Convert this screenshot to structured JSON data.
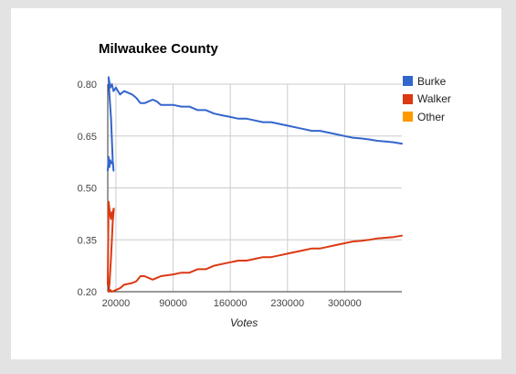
{
  "chart_data": {
    "type": "line",
    "title": "Milwaukee County",
    "xlabel": "Votes",
    "ylabel": "",
    "xlim": [
      10000,
      370000
    ],
    "ylim": [
      0.2,
      0.8
    ],
    "x_ticks": [
      20000,
      90000,
      160000,
      230000,
      300000
    ],
    "y_ticks": [
      0.2,
      0.35,
      0.5,
      0.65,
      0.8
    ],
    "x_tick_labels": [
      "20000",
      "90000",
      "160000",
      "230000",
      "300000"
    ],
    "y_tick_labels": [
      "0.20",
      "0.35",
      "0.50",
      "0.65",
      "0.80"
    ],
    "grid": true,
    "legend_position": "right",
    "series": [
      {
        "name": "Burke",
        "color": "#3366cc",
        "points": [
          [
            10000,
            0.55
          ],
          [
            11000,
            0.59
          ],
          [
            12000,
            0.56
          ],
          [
            13000,
            0.58
          ],
          [
            15000,
            0.57
          ],
          [
            16500,
            0.57
          ],
          [
            17000,
            0.55
          ],
          [
            16000,
            0.58
          ],
          [
            14000,
            0.7
          ],
          [
            12000,
            0.77
          ],
          [
            11000,
            0.82
          ],
          [
            13000,
            0.79
          ],
          [
            15000,
            0.8
          ],
          [
            17000,
            0.78
          ],
          [
            20000,
            0.79
          ],
          [
            25000,
            0.77
          ],
          [
            30000,
            0.78
          ],
          [
            40000,
            0.77
          ],
          [
            45000,
            0.76
          ],
          [
            50000,
            0.745
          ],
          [
            55000,
            0.745
          ],
          [
            60000,
            0.75
          ],
          [
            65000,
            0.755
          ],
          [
            70000,
            0.75
          ],
          [
            75000,
            0.74
          ],
          [
            90000,
            0.74
          ],
          [
            100000,
            0.735
          ],
          [
            110000,
            0.735
          ],
          [
            120000,
            0.725
          ],
          [
            130000,
            0.725
          ],
          [
            140000,
            0.715
          ],
          [
            150000,
            0.71
          ],
          [
            160000,
            0.705
          ],
          [
            170000,
            0.7
          ],
          [
            180000,
            0.7
          ],
          [
            190000,
            0.695
          ],
          [
            200000,
            0.69
          ],
          [
            210000,
            0.69
          ],
          [
            220000,
            0.685
          ],
          [
            230000,
            0.68
          ],
          [
            240000,
            0.675
          ],
          [
            250000,
            0.67
          ],
          [
            260000,
            0.665
          ],
          [
            270000,
            0.665
          ],
          [
            280000,
            0.66
          ],
          [
            290000,
            0.655
          ],
          [
            300000,
            0.65
          ],
          [
            310000,
            0.645
          ],
          [
            320000,
            0.643
          ],
          [
            330000,
            0.64
          ],
          [
            340000,
            0.636
          ],
          [
            350000,
            0.634
          ],
          [
            360000,
            0.632
          ],
          [
            370000,
            0.628
          ]
        ]
      },
      {
        "name": "Walker",
        "color": "#dc3912",
        "points": [
          [
            10000,
            0.22
          ],
          [
            11000,
            0.46
          ],
          [
            12000,
            0.44
          ],
          [
            13000,
            0.42
          ],
          [
            14000,
            0.41
          ],
          [
            15000,
            0.43
          ],
          [
            16000,
            0.42
          ],
          [
            17000,
            0.44
          ],
          [
            17500,
            0.44
          ],
          [
            16000,
            0.4
          ],
          [
            14000,
            0.3
          ],
          [
            12000,
            0.22
          ],
          [
            11000,
            0.2
          ],
          [
            13000,
            0.205
          ],
          [
            15000,
            0.2
          ],
          [
            20000,
            0.205
          ],
          [
            25000,
            0.21
          ],
          [
            30000,
            0.22
          ],
          [
            40000,
            0.225
          ],
          [
            45000,
            0.23
          ],
          [
            50000,
            0.245
          ],
          [
            55000,
            0.245
          ],
          [
            60000,
            0.24
          ],
          [
            65000,
            0.235
          ],
          [
            70000,
            0.24
          ],
          [
            75000,
            0.245
          ],
          [
            90000,
            0.25
          ],
          [
            100000,
            0.255
          ],
          [
            110000,
            0.255
          ],
          [
            120000,
            0.265
          ],
          [
            130000,
            0.265
          ],
          [
            140000,
            0.275
          ],
          [
            150000,
            0.28
          ],
          [
            160000,
            0.285
          ],
          [
            170000,
            0.29
          ],
          [
            180000,
            0.29
          ],
          [
            190000,
            0.295
          ],
          [
            200000,
            0.3
          ],
          [
            210000,
            0.3
          ],
          [
            220000,
            0.305
          ],
          [
            230000,
            0.31
          ],
          [
            240000,
            0.315
          ],
          [
            250000,
            0.32
          ],
          [
            260000,
            0.325
          ],
          [
            270000,
            0.325
          ],
          [
            280000,
            0.33
          ],
          [
            290000,
            0.335
          ],
          [
            300000,
            0.34
          ],
          [
            310000,
            0.345
          ],
          [
            320000,
            0.347
          ],
          [
            330000,
            0.35
          ],
          [
            340000,
            0.354
          ],
          [
            350000,
            0.356
          ],
          [
            360000,
            0.358
          ],
          [
            370000,
            0.362
          ]
        ]
      },
      {
        "name": "Other",
        "color": "#ff9900",
        "points": []
      }
    ]
  }
}
